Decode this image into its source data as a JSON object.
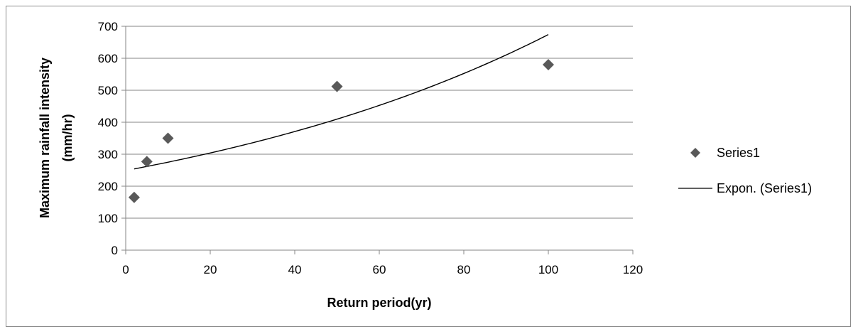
{
  "chart_data": {
    "type": "scatter",
    "title": "",
    "xlabel": "Return period(yr)",
    "ylabel_lines": [
      "Maximum rainfall intensity",
      "(mm/hr)"
    ],
    "xlim": [
      0,
      120
    ],
    "ylim": [
      0,
      700
    ],
    "xticks": [
      0,
      20,
      40,
      60,
      80,
      100,
      120
    ],
    "yticks": [
      0,
      100,
      200,
      300,
      400,
      500,
      600,
      700
    ],
    "grid": "horizontal",
    "legend_position": "right",
    "series": [
      {
        "name": "Series1",
        "marker": "diamond",
        "color": "#595959",
        "points": [
          {
            "x": 2,
            "y": 165
          },
          {
            "x": 5,
            "y": 277
          },
          {
            "x": 10,
            "y": 350
          },
          {
            "x": 50,
            "y": 512
          },
          {
            "x": 100,
            "y": 580
          }
        ]
      }
    ],
    "trendline": {
      "name": "Expon. (Series1)",
      "type": "exponential",
      "color": "#000000",
      "x_range": [
        2,
        100
      ],
      "a": 249,
      "b": 0.00996
    }
  }
}
